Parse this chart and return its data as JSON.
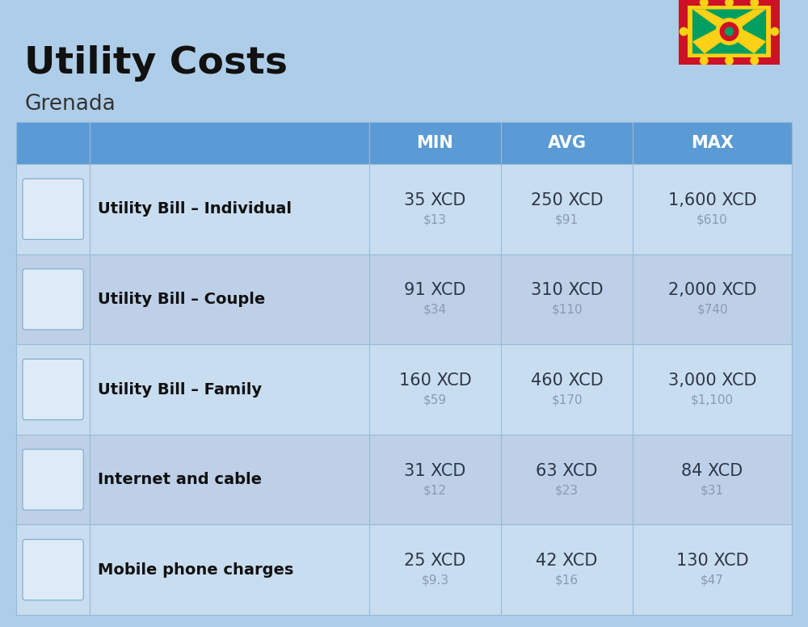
{
  "title": "Utility Costs",
  "subtitle": "Grenada",
  "background_color": "#aecde8",
  "header_bg_color": "#5b9bd5",
  "header_text_color": "#ffffff",
  "row_bg_color_even": "#c9ddf0",
  "row_bg_color_odd": "#bdd0e8",
  "cell_line_color": "#98bad5",
  "columns": [
    "MIN",
    "AVG",
    "MAX"
  ],
  "rows": [
    {
      "label": "Utility Bill – Individual",
      "min_xcd": "35 XCD",
      "min_usd": "$13",
      "avg_xcd": "250 XCD",
      "avg_usd": "$91",
      "max_xcd": "1,600 XCD",
      "max_usd": "$610"
    },
    {
      "label": "Utility Bill – Couple",
      "min_xcd": "91 XCD",
      "min_usd": "$34",
      "avg_xcd": "310 XCD",
      "avg_usd": "$110",
      "max_xcd": "2,000 XCD",
      "max_usd": "$740"
    },
    {
      "label": "Utility Bill – Family",
      "min_xcd": "160 XCD",
      "min_usd": "$59",
      "avg_xcd": "460 XCD",
      "avg_usd": "$170",
      "max_xcd": "3,000 XCD",
      "max_usd": "$1,100"
    },
    {
      "label": "Internet and cable",
      "min_xcd": "31 XCD",
      "min_usd": "$12",
      "avg_xcd": "63 XCD",
      "avg_usd": "$23",
      "max_xcd": "84 XCD",
      "max_usd": "$31"
    },
    {
      "label": "Mobile phone charges",
      "min_xcd": "25 XCD",
      "min_usd": "$9.3",
      "avg_xcd": "42 XCD",
      "avg_usd": "$16",
      "max_xcd": "130 XCD",
      "max_usd": "$47"
    }
  ],
  "title_fontsize": 34,
  "subtitle_fontsize": 19,
  "header_fontsize": 15,
  "label_fontsize": 14,
  "value_fontsize": 15,
  "subvalue_fontsize": 11,
  "value_color": "#2d3748",
  "subvalue_color": "#8a9bb0",
  "label_color": "#111111"
}
